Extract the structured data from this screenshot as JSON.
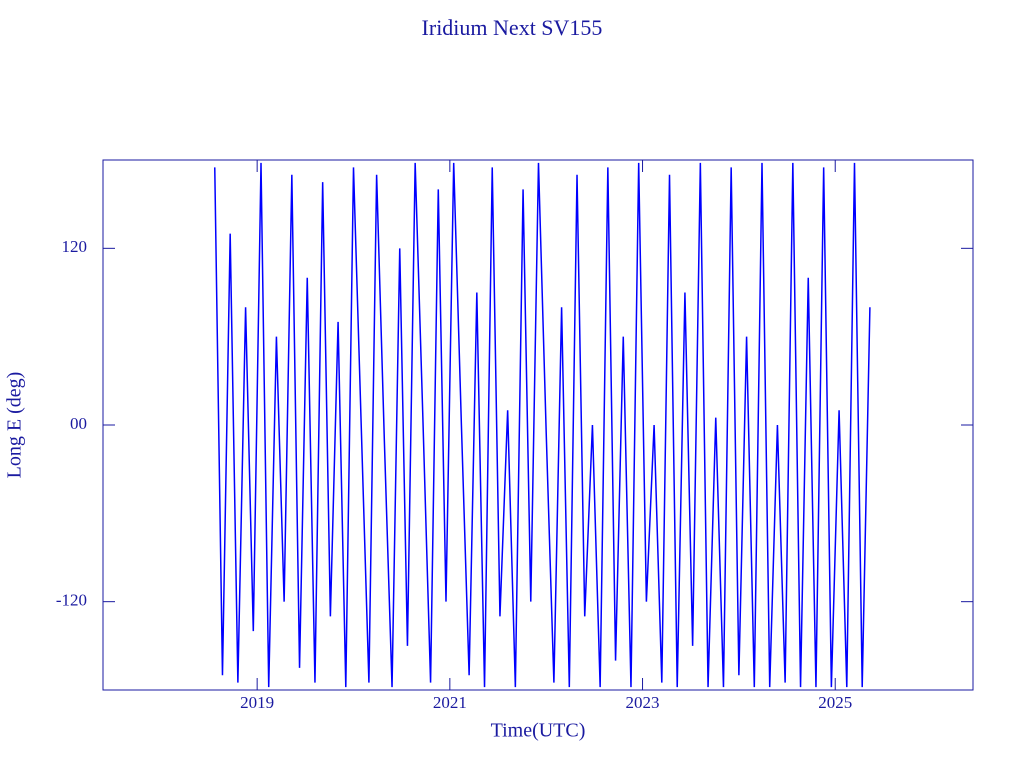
{
  "chart_data": {
    "type": "line",
    "title": "Iridium Next SV155",
    "x_label": "Time(UTC)",
    "y_label": "Long E (deg)",
    "xlim": [
      2017.4,
      2026.43
    ],
    "xticks": [
      2019,
      2021,
      2023,
      2025
    ],
    "ylim": [
      -180,
      180
    ],
    "yticks": [
      -120,
      {
        "value": 0,
        "label": "00"
      },
      120
    ],
    "x": [
      2018.56,
      2018.64,
      2018.72,
      2018.8,
      2018.88,
      2018.96,
      2019.04,
      2019.12,
      2019.2,
      2019.28,
      2019.36,
      2019.44,
      2019.52,
      2019.6,
      2019.68,
      2019.76,
      2019.84,
      2019.92,
      2020.0,
      2020.08,
      2020.16,
      2020.24,
      2020.32,
      2020.4,
      2020.48,
      2020.56,
      2020.64,
      2020.72,
      2020.8,
      2020.88,
      2020.96,
      2021.04,
      2021.12,
      2021.2,
      2021.28,
      2021.36,
      2021.44,
      2021.52,
      2021.6,
      2021.68,
      2021.76,
      2021.84,
      2021.92,
      2022.0,
      2022.08,
      2022.16,
      2022.24,
      2022.32,
      2022.4,
      2022.48,
      2022.56,
      2022.64,
      2022.72,
      2022.8,
      2022.88,
      2022.96,
      2023.04,
      2023.12,
      2023.2,
      2023.28,
      2023.36,
      2023.44,
      2023.52,
      2023.6,
      2023.68,
      2023.76,
      2023.84,
      2023.92,
      2024.0,
      2024.08,
      2024.16,
      2024.24,
      2024.32,
      2024.4,
      2024.48,
      2024.56,
      2024.64,
      2024.72,
      2024.8,
      2024.88,
      2024.96,
      2025.04,
      2025.12,
      2025.2,
      2025.28,
      2025.36
    ],
    "series": [
      {
        "color": "#0000ff",
        "values": [
          175,
          -170,
          130,
          -175,
          80,
          -140,
          178,
          -178,
          60,
          -120,
          170,
          -165,
          100,
          -175,
          165,
          -130,
          70,
          -178,
          175,
          0,
          -175,
          170,
          -10,
          -178,
          120,
          -150,
          178,
          5,
          -175,
          160,
          -120,
          178,
          0,
          -170,
          90,
          -178,
          175,
          -130,
          10,
          -178,
          160,
          -120,
          178,
          -5,
          -175,
          80,
          -178,
          170,
          -130,
          0,
          -178,
          175,
          -160,
          60,
          -178,
          178,
          -120,
          0,
          -175,
          170,
          -178,
          90,
          -150,
          178,
          -178,
          5,
          -178,
          175,
          -170,
          60,
          -178,
          178,
          -178,
          0,
          -175,
          178,
          -178,
          100,
          -178,
          175,
          -178,
          10,
          -178,
          178,
          -178,
          80
        ]
      }
    ],
    "text_color": "#1a1aa0"
  }
}
